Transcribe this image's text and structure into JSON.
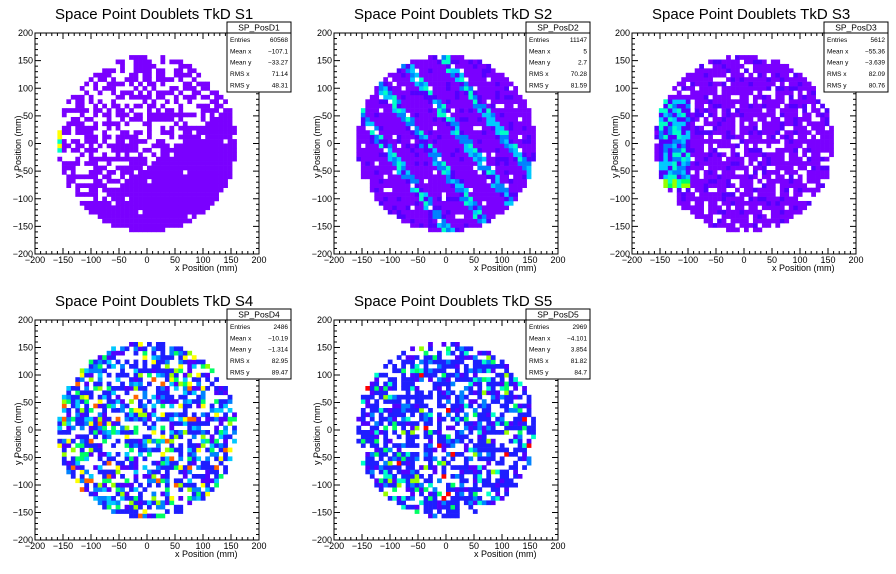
{
  "chart_data": [
    {
      "type": "heatmap",
      "title": "Space Point Doublets TkD S1",
      "xlabel": "x Position (mm)",
      "ylabel": "y Position (mm)",
      "xlim": [
        -200,
        200
      ],
      "ylim": [
        -200,
        200
      ],
      "xticks": [
        -200,
        -150,
        -100,
        -50,
        0,
        50,
        100,
        150,
        200
      ],
      "yticks": [
        -200,
        -150,
        -100,
        -50,
        0,
        50,
        100,
        150,
        200
      ],
      "bin_size_mm": 8,
      "detector_radius_mm": 160,
      "pattern": "s1",
      "stats": {
        "name": "SP_PosD1",
        "rows": [
          [
            "Entries",
            "60568"
          ],
          [
            "Mean x",
            "−107.1"
          ],
          [
            "Mean y",
            "−33.27"
          ],
          [
            "RMS x",
            "71.14"
          ],
          [
            "RMS y",
            "48.31"
          ]
        ]
      }
    },
    {
      "type": "heatmap",
      "title": "Space Point Doublets TkD S2",
      "xlabel": "x Position (mm)",
      "ylabel": "y Position (mm)",
      "xlim": [
        -200,
        200
      ],
      "ylim": [
        -200,
        200
      ],
      "xticks": [
        -200,
        -150,
        -100,
        -50,
        0,
        50,
        100,
        150,
        200
      ],
      "yticks": [
        -200,
        -150,
        -100,
        -50,
        0,
        50,
        100,
        150,
        200
      ],
      "bin_size_mm": 8,
      "detector_radius_mm": 160,
      "pattern": "s2",
      "stats": {
        "name": "SP_PosD2",
        "rows": [
          [
            "Entries",
            "11147"
          ],
          [
            "Mean x",
            "5"
          ],
          [
            "Mean y",
            "2.7"
          ],
          [
            "RMS x",
            "70.28"
          ],
          [
            "RMS y",
            "81.59"
          ]
        ]
      }
    },
    {
      "type": "heatmap",
      "title": "Space Point Doublets TkD S3",
      "xlabel": "x Position (mm)",
      "ylabel": "y Position (mm)",
      "xlim": [
        -200,
        200
      ],
      "ylim": [
        -200,
        200
      ],
      "xticks": [
        -200,
        -150,
        -100,
        -50,
        0,
        50,
        100,
        150,
        200
      ],
      "yticks": [
        -200,
        -150,
        -100,
        -50,
        0,
        50,
        100,
        150,
        200
      ],
      "bin_size_mm": 8,
      "detector_radius_mm": 160,
      "pattern": "s3",
      "stats": {
        "name": "SP_PosD3",
        "rows": [
          [
            "Entries",
            "5612"
          ],
          [
            "Mean x",
            "−55.36"
          ],
          [
            "Mean y",
            "−3.639"
          ],
          [
            "RMS x",
            "82.09"
          ],
          [
            "RMS y",
            "80.76"
          ]
        ]
      }
    },
    {
      "type": "heatmap",
      "title": "Space Point Doublets TkD S4",
      "xlabel": "x Position (mm)",
      "ylabel": "y Position (mm)",
      "xlim": [
        -200,
        200
      ],
      "ylim": [
        -200,
        200
      ],
      "xticks": [
        -200,
        -150,
        -100,
        -50,
        0,
        50,
        100,
        150,
        200
      ],
      "yticks": [
        -200,
        -150,
        -100,
        -50,
        0,
        50,
        100,
        150,
        200
      ],
      "bin_size_mm": 8,
      "detector_radius_mm": 160,
      "pattern": "s4",
      "stats": {
        "name": "SP_PosD4",
        "rows": [
          [
            "Entries",
            "2486"
          ],
          [
            "Mean x",
            "−10.19"
          ],
          [
            "Mean y",
            "−1.314"
          ],
          [
            "RMS x",
            "82.95"
          ],
          [
            "RMS y",
            "89.47"
          ]
        ]
      }
    },
    {
      "type": "heatmap",
      "title": "Space Point Doublets TkD S5",
      "xlabel": "x Position (mm)",
      "ylabel": "y Position (mm)",
      "xlim": [
        -200,
        200
      ],
      "ylim": [
        -200,
        200
      ],
      "xticks": [
        -200,
        -150,
        -100,
        -50,
        0,
        50,
        100,
        150,
        200
      ],
      "yticks": [
        -200,
        -150,
        -100,
        -50,
        0,
        50,
        100,
        150,
        200
      ],
      "bin_size_mm": 8,
      "detector_radius_mm": 160,
      "pattern": "s5",
      "stats": {
        "name": "SP_PosD5",
        "rows": [
          [
            "Entries",
            "2969"
          ],
          [
            "Mean x",
            "−4.101"
          ],
          [
            "Mean y",
            "3.854"
          ],
          [
            "RMS x",
            "81.82"
          ],
          [
            "RMS y",
            "84.7"
          ]
        ]
      }
    }
  ],
  "palette": [
    "#7a00ff",
    "#5200ff",
    "#1e1eff",
    "#0082ff",
    "#00c8ff",
    "#00ffc8",
    "#00ff64",
    "#96ff00",
    "#ffff00",
    "#ff6400",
    "#ff0000"
  ]
}
